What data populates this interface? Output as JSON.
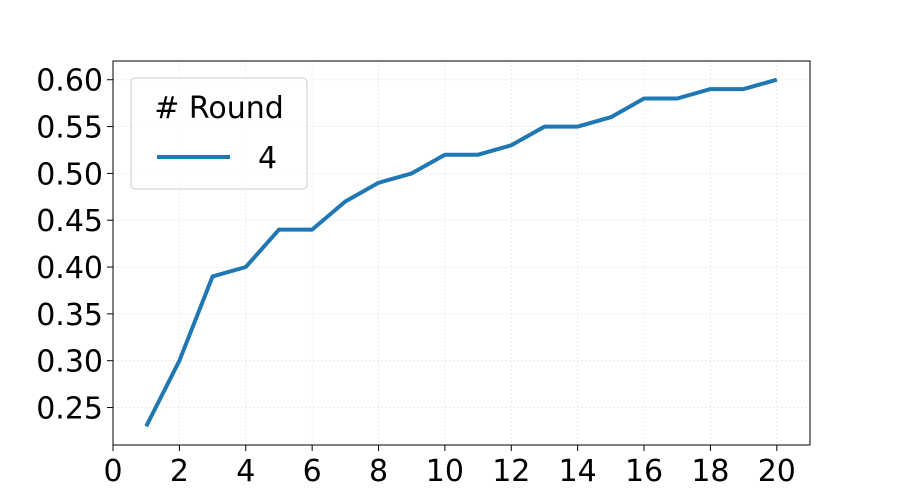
{
  "chart_data": {
    "type": "line",
    "title": "",
    "xlabel": "",
    "ylabel": "",
    "xlim": [
      0,
      21
    ],
    "ylim": [
      0.21,
      0.62
    ],
    "xticks": [
      0,
      2,
      4,
      6,
      8,
      10,
      12,
      14,
      16,
      18,
      20
    ],
    "xtick_labels": [
      "0",
      "2",
      "4",
      "6",
      "8",
      "10",
      "12",
      "14",
      "16",
      "18",
      "20"
    ],
    "yticks": [
      0.25,
      0.3,
      0.35,
      0.4,
      0.45,
      0.5,
      0.55,
      0.6
    ],
    "ytick_labels": [
      "0.25",
      "0.30",
      "0.35",
      "0.40",
      "0.45",
      "0.50",
      "0.55",
      "0.60"
    ],
    "grid": true,
    "legend": {
      "title": "# Round",
      "placement": "top-left"
    },
    "series": [
      {
        "name": "4",
        "color": "#1f77b4",
        "x": [
          1,
          2,
          3,
          4,
          5,
          6,
          7,
          8,
          9,
          10,
          11,
          12,
          13,
          14,
          15,
          16,
          17,
          18,
          19,
          20
        ],
        "y": [
          0.23,
          0.3,
          0.39,
          0.4,
          0.44,
          0.44,
          0.47,
          0.49,
          0.5,
          0.52,
          0.52,
          0.53,
          0.55,
          0.55,
          0.56,
          0.58,
          0.58,
          0.59,
          0.59,
          0.6
        ]
      }
    ]
  }
}
